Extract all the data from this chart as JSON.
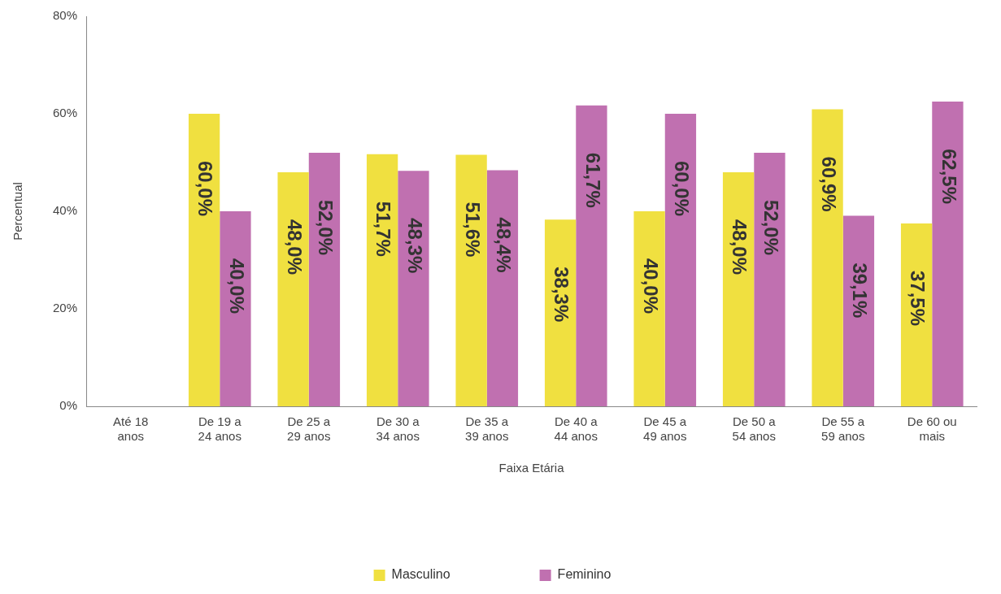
{
  "chart_data": {
    "type": "bar",
    "xlabel": "Faixa Etária",
    "ylabel": "Percentual",
    "categories": [
      "Até 18 anos",
      "De 19 a 24 anos",
      "De 25 a 29 anos",
      "De 30 a 34 anos",
      "De 35 a 39 anos",
      "De 40 a 44 anos",
      "De 45 a 49 anos",
      "De 50 a 54 anos",
      "De 55 a 59 anos",
      "De 60 ou mais"
    ],
    "series": [
      {
        "name": "Masculino",
        "color": "#f0e040",
        "values": [
          0,
          60.0,
          48.0,
          51.7,
          51.6,
          38.3,
          40.0,
          48.0,
          60.9,
          37.5
        ],
        "value_labels": [
          null,
          "60,0%",
          "48,0%",
          "51,7%",
          "51,6%",
          "38,3%",
          "40,0%",
          "48,0%",
          "60,9%",
          "37,5%"
        ]
      },
      {
        "name": "Feminino",
        "color": "#c070b0",
        "values": [
          0,
          40.0,
          52.0,
          48.3,
          48.4,
          61.7,
          60.0,
          52.0,
          39.1,
          62.5
        ],
        "value_labels": [
          null,
          "40,0%",
          "52,0%",
          "48,3%",
          "48,4%",
          "61,7%",
          "60,0%",
          "52,0%",
          "39,1%",
          "62,5%"
        ]
      }
    ],
    "ylim": [
      0,
      80
    ],
    "yticks": [
      {
        "value": 0,
        "label": "0%"
      },
      {
        "value": 20,
        "label": "20%"
      },
      {
        "value": 40,
        "label": "40%"
      },
      {
        "value": 60,
        "label": "60%"
      },
      {
        "value": 80,
        "label": "80%"
      }
    ],
    "grid": false,
    "legend": "bottom"
  }
}
